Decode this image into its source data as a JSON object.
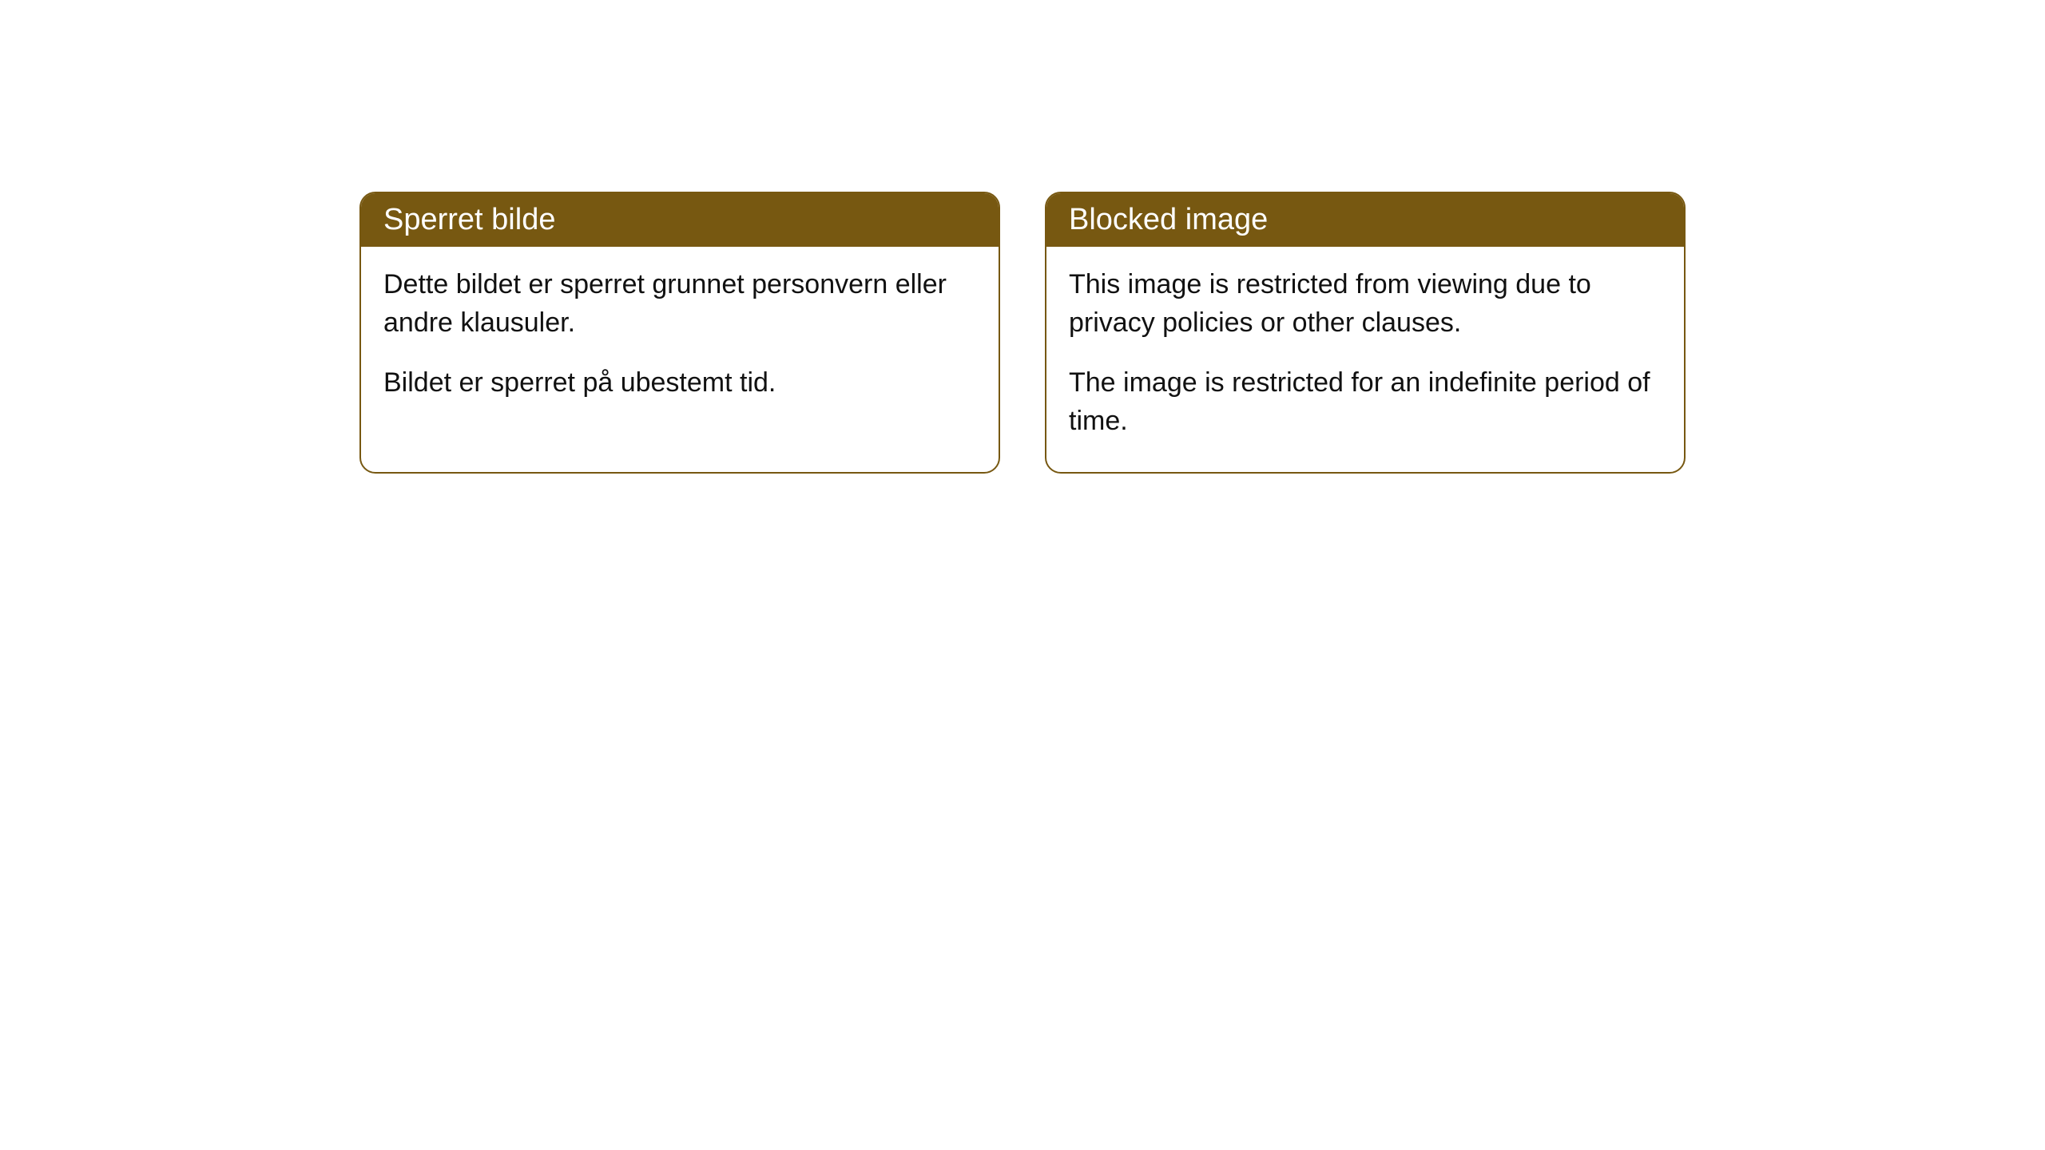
{
  "cards": [
    {
      "title": "Sperret bilde",
      "paragraph1": "Dette bildet er sperret grunnet personvern eller andre klausuler.",
      "paragraph2": "Bildet er sperret på ubestemt tid."
    },
    {
      "title": "Blocked image",
      "paragraph1": "This image is restricted from viewing due to privacy policies or other clauses.",
      "paragraph2": "The image is restricted for an indefinite period of time."
    }
  ],
  "style": {
    "header_background": "#775811",
    "header_text_color": "#ffffff",
    "border_color": "#775811",
    "body_text_color": "#111111",
    "background_color": "#ffffff",
    "border_radius": 20,
    "header_fontsize": 38,
    "body_fontsize": 34
  }
}
